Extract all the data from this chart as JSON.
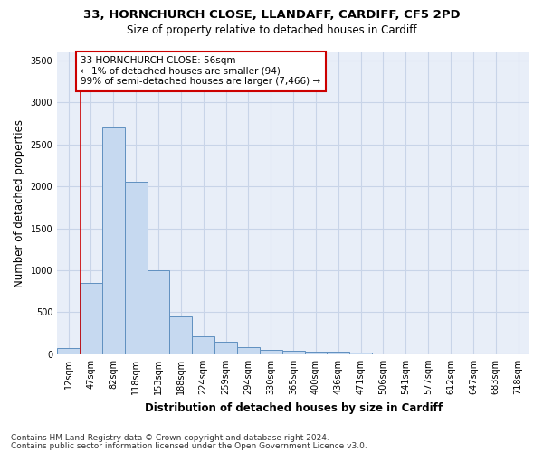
{
  "title_line1": "33, HORNCHURCH CLOSE, LLANDAFF, CARDIFF, CF5 2PD",
  "title_line2": "Size of property relative to detached houses in Cardiff",
  "xlabel": "Distribution of detached houses by size in Cardiff",
  "ylabel": "Number of detached properties",
  "categories": [
    "12sqm",
    "47sqm",
    "82sqm",
    "118sqm",
    "153sqm",
    "188sqm",
    "224sqm",
    "259sqm",
    "294sqm",
    "330sqm",
    "365sqm",
    "400sqm",
    "436sqm",
    "471sqm",
    "506sqm",
    "541sqm",
    "577sqm",
    "612sqm",
    "647sqm",
    "683sqm",
    "718sqm"
  ],
  "values": [
    75,
    850,
    2700,
    2050,
    1000,
    450,
    210,
    145,
    80,
    55,
    40,
    30,
    30,
    20,
    0,
    0,
    0,
    0,
    0,
    0,
    0
  ],
  "bar_color": "#c6d9f0",
  "bar_edge_color": "#6090c0",
  "vline_color": "#cc0000",
  "vline_x": 0.55,
  "annotation_text": "33 HORNCHURCH CLOSE: 56sqm\n← 1% of detached houses are smaller (94)\n99% of semi-detached houses are larger (7,466) →",
  "annotation_box_facecolor": "#ffffff",
  "annotation_box_edgecolor": "#cc0000",
  "ylim": [
    0,
    3600
  ],
  "yticks": [
    0,
    500,
    1000,
    1500,
    2000,
    2500,
    3000,
    3500
  ],
  "grid_color": "#c8d4e8",
  "background_color": "#ffffff",
  "plot_bg_color": "#e8eef8",
  "footer_line1": "Contains HM Land Registry data © Crown copyright and database right 2024.",
  "footer_line2": "Contains public sector information licensed under the Open Government Licence v3.0.",
  "title_fontsize": 9.5,
  "subtitle_fontsize": 8.5,
  "axis_label_fontsize": 8.5,
  "tick_fontsize": 7,
  "annotation_fontsize": 7.5,
  "footer_fontsize": 6.5
}
